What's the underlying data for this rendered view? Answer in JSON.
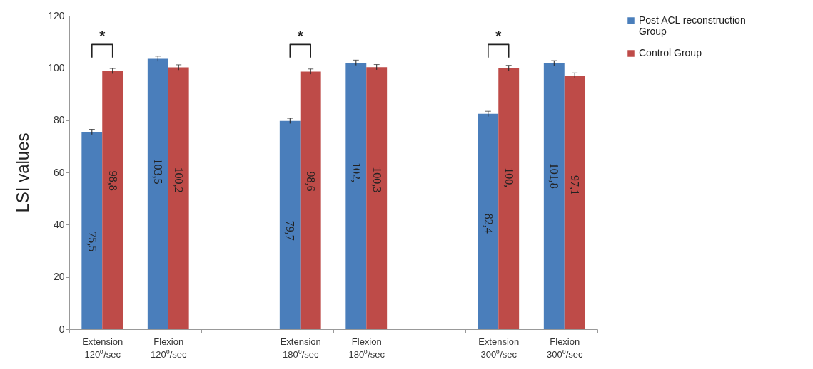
{
  "chart_data": {
    "type": "bar",
    "ylabel": "LSI values",
    "categories": [
      "Extension 120⁰/sec",
      "Flexion 120⁰/sec",
      null,
      "Extension 180⁰/sec",
      "Flexion 180⁰/sec",
      null,
      "Extension 300⁰/sec",
      "Flexion 300⁰/sec"
    ],
    "series": [
      {
        "name": "Post ACL reconstruction Group",
        "color": "#4a7ebb",
        "values": [
          75.5,
          103.5,
          null,
          79.7,
          102,
          null,
          82.4,
          101.8
        ],
        "errors": [
          1,
          1,
          null,
          1,
          1,
          null,
          1,
          1
        ],
        "value_labels": [
          "75,5",
          "103,5",
          null,
          "79,7",
          "102,",
          null,
          "82,4",
          "101,8"
        ]
      },
      {
        "name": "Control Group",
        "color": "#be4b48",
        "values": [
          98.8,
          100.2,
          null,
          98.6,
          100.3,
          null,
          100,
          97.1
        ],
        "errors": [
          1,
          1,
          null,
          1,
          1,
          null,
          1,
          1
        ],
        "value_labels": [
          "98,8",
          "100,2",
          null,
          "98,6",
          "100,3",
          null,
          "100,",
          "97,1"
        ]
      }
    ],
    "ylim": [
      0,
      120
    ],
    "yticks": [
      0,
      20,
      40,
      60,
      80,
      100,
      120
    ],
    "grid": false,
    "legend": "right",
    "annotations": [
      "*",
      "*",
      "*"
    ]
  }
}
